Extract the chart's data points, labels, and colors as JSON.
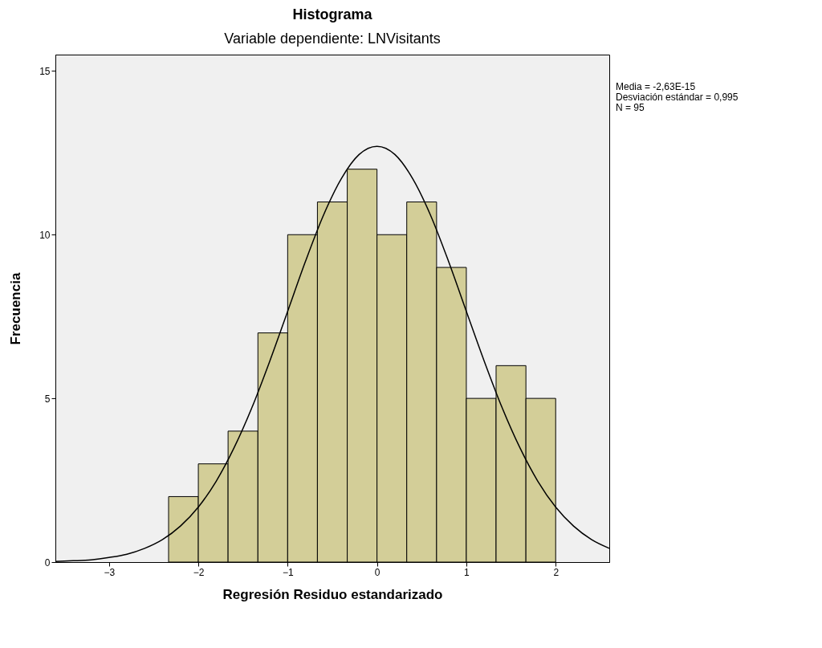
{
  "chart_data": {
    "type": "histogram",
    "title": "Histograma",
    "subtitle": "Variable dependiente: LNVisitants",
    "xlabel": "Regresión Residuo estandarizado",
    "ylabel": "Frecuencia",
    "bins": [
      -2.333,
      -2,
      -1.667,
      -1.333,
      -1,
      -0.667,
      -0.333,
      0,
      0.333,
      0.667,
      1,
      1.333,
      1.667,
      2
    ],
    "values": [
      2,
      3,
      4,
      7,
      10,
      11,
      12,
      10,
      11,
      9,
      5,
      6,
      5
    ],
    "color": "#d3ce98",
    "series": [
      {
        "type": "line",
        "color": "#000000",
        "x": [
          -3.6,
          -3.4,
          -3.2,
          -3.0,
          -2.8,
          -2.6,
          -2.4,
          -2.2,
          -2.0,
          -1.8,
          -1.6,
          -1.4,
          -1.2,
          -1.0,
          -0.8,
          -0.6,
          -0.4,
          -0.2,
          0,
          0.2,
          0.4,
          0.6,
          0.8,
          1.0,
          1.2,
          1.4,
          1.6,
          1.8,
          2.0,
          2.2,
          2.4,
          2.6
        ],
        "values": [
          0.02,
          0.04,
          0.07,
          0.14,
          0.24,
          0.42,
          0.69,
          1.1,
          1.68,
          2.47,
          3.49,
          4.72,
          6.14,
          7.66,
          9.19,
          10.59,
          11.71,
          12.45,
          12.7,
          12.45,
          11.71,
          10.59,
          9.19,
          7.66,
          6.14,
          4.72,
          3.49,
          2.47,
          1.68,
          1.1,
          0.69,
          0.42
        ]
      }
    ],
    "xlim": [
      -3.6,
      2.6
    ],
    "ylim": [
      0,
      15.5
    ],
    "xticks": [
      -3,
      -2,
      -1,
      0,
      1,
      2
    ],
    "yticks": [
      0,
      5,
      10,
      15
    ],
    "grid": false,
    "annotations": [
      "Media = -2,63E-15",
      "Desviación estándar = 0,995",
      "N = 95"
    ]
  }
}
